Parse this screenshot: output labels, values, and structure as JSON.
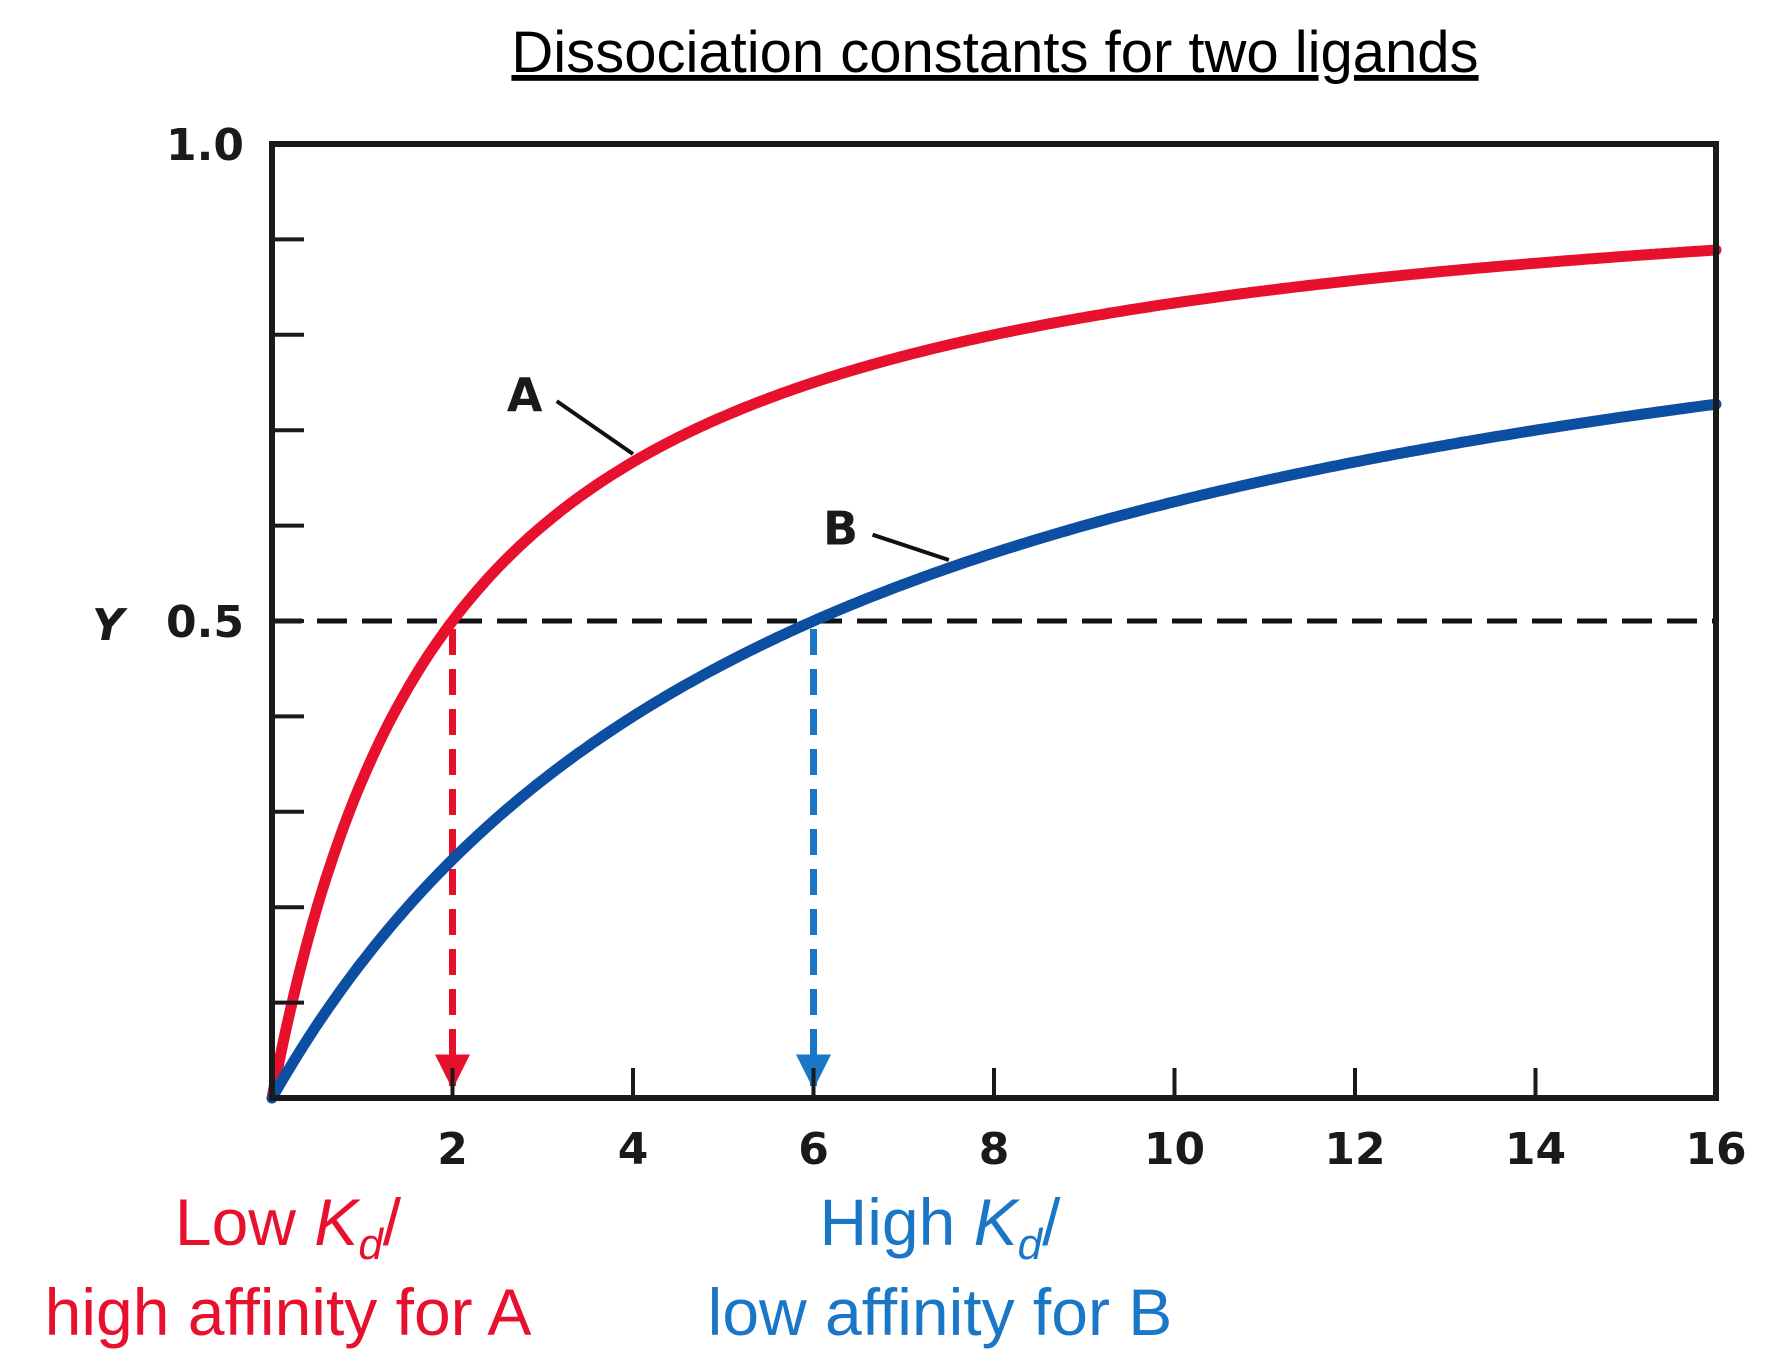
{
  "chart_data": {
    "type": "line",
    "title": "Dissociation constants for two ligands",
    "ylabel": "Y",
    "xlim": [
      0,
      16
    ],
    "ylim": [
      0,
      1.0
    ],
    "x_ticks": [
      2,
      4,
      6,
      8,
      10,
      12,
      14,
      16
    ],
    "y_tick_labels": [
      {
        "value": 1.0,
        "label": "1.0"
      },
      {
        "value": 0.5,
        "label": "0.5"
      }
    ],
    "y_minor_ticks": [
      0.1,
      0.2,
      0.3,
      0.4,
      0.6,
      0.7,
      0.8,
      0.9
    ],
    "reference_line": {
      "y": 0.5,
      "style": "dashed",
      "color": "#111111"
    },
    "series": [
      {
        "name": "A",
        "kd": 2,
        "color": "#e8112d",
        "label_pos": [
          2.8,
          0.72
        ],
        "leader_to": 4.0
      },
      {
        "name": "B",
        "kd": 6,
        "color": "#0b4ea2",
        "label_pos": [
          6.3,
          0.58
        ],
        "leader_to": 7.5
      }
    ],
    "kd_markers": [
      {
        "x": 2,
        "color": "#e8112d"
      },
      {
        "x": 6,
        "color": "#1a76c6"
      }
    ],
    "annotations": [
      {
        "id": "a",
        "color": "#e8112d",
        "line1_pre": "Low ",
        "line1_k": "K",
        "line1_sub": "d",
        "line1_post": "/",
        "line2": "high affinity for A"
      },
      {
        "id": "b",
        "color": "#1a76c6",
        "line1_pre": "High ",
        "line1_k": "K",
        "line1_sub": "d",
        "line1_post": "/",
        "line2": "low affinity for B"
      }
    ]
  }
}
